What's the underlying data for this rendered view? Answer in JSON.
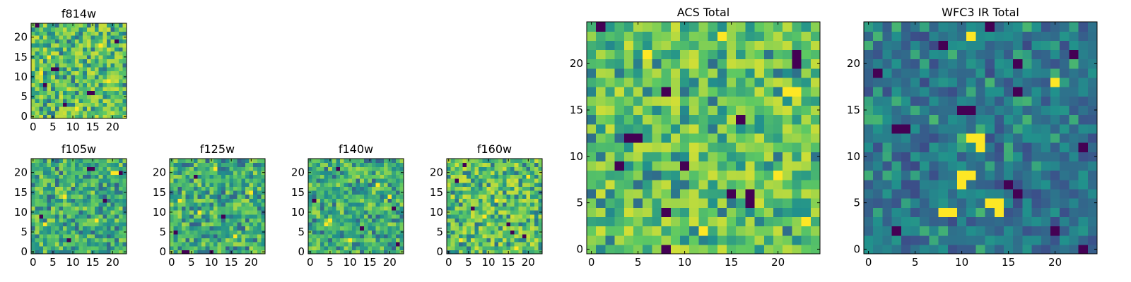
{
  "figure": {
    "description_free": true
  },
  "colormap": [
    "#440154",
    "#3b528b",
    "#21918c",
    "#5ec962",
    "#fde725"
  ],
  "chart_data": [
    {
      "id": "f814w",
      "type": "heatmap",
      "title": "f814w",
      "xlabel": "",
      "ylabel": "",
      "grid_size": 24,
      "xlim": [
        0,
        24
      ],
      "ylim": [
        0,
        24
      ],
      "xticks": [
        "0",
        "5",
        "10",
        "15",
        "20"
      ],
      "yticks": [
        "0",
        "5",
        "10",
        "15",
        "20"
      ],
      "style": "bright",
      "seed": 814,
      "dark_cells": [
        [
          1,
          23
        ],
        [
          21,
          19
        ],
        [
          5,
          12
        ],
        [
          6,
          12
        ],
        [
          14,
          6
        ],
        [
          15,
          6
        ],
        [
          8,
          3
        ],
        [
          3,
          8
        ]
      ],
      "bright_cells": [
        [
          11,
          2
        ],
        [
          17,
          18
        ],
        [
          4,
          15
        ],
        [
          19,
          9
        ],
        [
          2,
          11
        ]
      ]
    },
    {
      "id": "f105w",
      "type": "heatmap",
      "title": "f105w",
      "xlabel": "",
      "ylabel": "",
      "grid_size": 24,
      "xlim": [
        0,
        24
      ],
      "ylim": [
        0,
        24
      ],
      "xticks": [
        "0",
        "5",
        "10",
        "15",
        "20"
      ],
      "yticks": [
        "0",
        "5",
        "10",
        "15",
        "20"
      ],
      "style": "mid",
      "seed": 105,
      "dark_cells": [
        [
          14,
          21
        ],
        [
          15,
          21
        ],
        [
          22,
          20
        ],
        [
          2,
          9
        ],
        [
          18,
          13
        ],
        [
          9,
          3
        ]
      ],
      "bright_cells": [
        [
          20,
          20
        ],
        [
          21,
          20
        ],
        [
          8,
          14
        ],
        [
          16,
          8
        ],
        [
          3,
          7
        ]
      ]
    },
    {
      "id": "f125w",
      "type": "heatmap",
      "title": "f125w",
      "xlabel": "",
      "ylabel": "",
      "grid_size": 24,
      "xlim": [
        0,
        24
      ],
      "ylim": [
        0,
        24
      ],
      "xticks": [
        "0",
        "5",
        "10",
        "15",
        "20"
      ],
      "yticks": [
        "0",
        "5",
        "10",
        "15",
        "20"
      ],
      "style": "mid",
      "seed": 125,
      "dark_cells": [
        [
          3,
          0
        ],
        [
          4,
          0
        ],
        [
          10,
          0
        ],
        [
          6,
          19
        ],
        [
          1,
          5
        ],
        [
          13,
          9
        ]
      ],
      "bright_cells": [
        [
          20,
          15
        ],
        [
          7,
          10
        ],
        [
          16,
          4
        ],
        [
          11,
          21
        ],
        [
          2,
          13
        ]
      ]
    },
    {
      "id": "f140w",
      "type": "heatmap",
      "title": "f140w",
      "xlabel": "",
      "ylabel": "",
      "grid_size": 24,
      "xlim": [
        0,
        24
      ],
      "ylim": [
        0,
        24
      ],
      "xticks": [
        "0",
        "5",
        "10",
        "15",
        "20"
      ],
      "yticks": [
        "0",
        "5",
        "10",
        "15",
        "20"
      ],
      "style": "mid",
      "seed": 140,
      "dark_cells": [
        [
          7,
          21
        ],
        [
          1,
          13
        ],
        [
          21,
          11
        ],
        [
          13,
          6
        ],
        [
          22,
          2
        ]
      ],
      "bright_cells": [
        [
          4,
          7
        ],
        [
          5,
          8
        ],
        [
          17,
          17
        ],
        [
          10,
          3
        ],
        [
          20,
          14
        ]
      ]
    },
    {
      "id": "f160w",
      "type": "heatmap",
      "title": "f160w",
      "xlabel": "",
      "ylabel": "",
      "grid_size": 24,
      "xlim": [
        0,
        24
      ],
      "ylim": [
        0,
        24
      ],
      "xticks": [
        "0",
        "5",
        "10",
        "15",
        "20"
      ],
      "yticks": [
        "0",
        "5",
        "10",
        "15",
        "20"
      ],
      "style": "bright",
      "seed": 160,
      "dark_cells": [
        [
          4,
          22
        ],
        [
          6,
          11
        ],
        [
          15,
          7
        ],
        [
          16,
          5
        ],
        [
          19,
          4
        ],
        [
          2,
          18
        ]
      ],
      "bright_cells": [
        [
          3,
          3
        ],
        [
          12,
          13
        ],
        [
          20,
          19
        ],
        [
          9,
          9
        ],
        [
          17,
          1
        ]
      ]
    },
    {
      "id": "acs-total",
      "type": "heatmap",
      "title": "ACS Total",
      "xlabel": "",
      "ylabel": "",
      "grid_size": 25,
      "xlim": [
        0,
        25
      ],
      "ylim": [
        0,
        25
      ],
      "xticks": [
        "0",
        "5",
        "10",
        "15",
        "20"
      ],
      "yticks": [
        "0",
        "5",
        "10",
        "15",
        "20"
      ],
      "style": "bright",
      "seed": 7,
      "dark_cells": [
        [
          1,
          24
        ],
        [
          8,
          17
        ],
        [
          4,
          12
        ],
        [
          5,
          12
        ],
        [
          3,
          9
        ],
        [
          10,
          9
        ],
        [
          16,
          14
        ],
        [
          15,
          6
        ],
        [
          17,
          6
        ],
        [
          17,
          5
        ],
        [
          8,
          4
        ],
        [
          22,
          21
        ],
        [
          22,
          20
        ],
        [
          8,
          0
        ]
      ],
      "bright_cells": [
        [
          21,
          17
        ],
        [
          22,
          17
        ],
        [
          6,
          21
        ],
        [
          14,
          23
        ],
        [
          12,
          2
        ],
        [
          23,
          3
        ],
        [
          20,
          8
        ]
      ]
    },
    {
      "id": "wfc3-ir-total",
      "type": "heatmap",
      "title": "WFC3 IR Total",
      "xlabel": "",
      "ylabel": "",
      "grid_size": 25,
      "xlim": [
        0,
        25
      ],
      "ylim": [
        0,
        25
      ],
      "xticks": [
        "0",
        "5",
        "10",
        "15",
        "20"
      ],
      "yticks": [
        "0",
        "5",
        "10",
        "15",
        "20"
      ],
      "style": "dark",
      "seed": 31,
      "dark_cells": [
        [
          13,
          24
        ],
        [
          1,
          19
        ],
        [
          16,
          20
        ],
        [
          22,
          21
        ],
        [
          3,
          13
        ],
        [
          4,
          13
        ],
        [
          16,
          17
        ],
        [
          10,
          15
        ],
        [
          11,
          15
        ],
        [
          23,
          11
        ],
        [
          15,
          7
        ],
        [
          16,
          6
        ],
        [
          3,
          2
        ],
        [
          20,
          2
        ],
        [
          23,
          0
        ],
        [
          8,
          22
        ]
      ],
      "bright_cells": [
        [
          11,
          23
        ],
        [
          20,
          18
        ],
        [
          11,
          12
        ],
        [
          12,
          12
        ],
        [
          12,
          11
        ],
        [
          10,
          8
        ],
        [
          11,
          8
        ],
        [
          10,
          7
        ],
        [
          8,
          4
        ],
        [
          9,
          4
        ],
        [
          13,
          5
        ],
        [
          14,
          5
        ],
        [
          14,
          4
        ]
      ]
    }
  ]
}
